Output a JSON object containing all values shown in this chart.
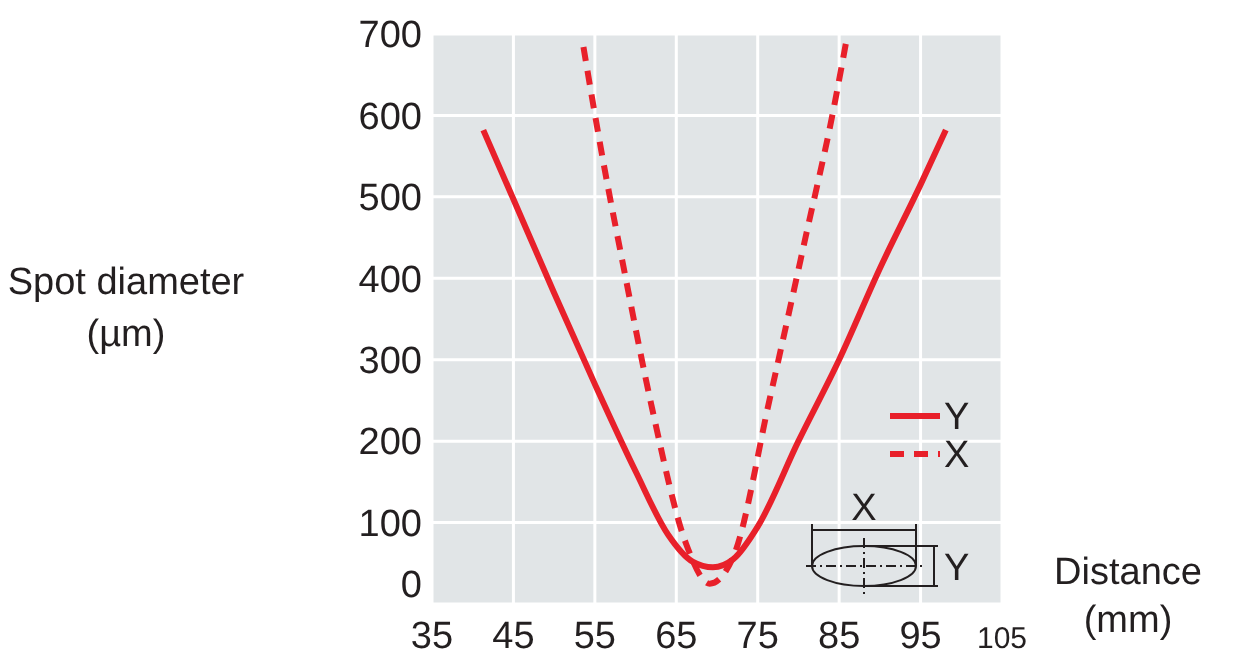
{
  "chart_data": {
    "type": "line",
    "xlabel": "Distance (mm)",
    "ylabel": "Spot diameter (µm)",
    "xlim": [
      35,
      105
    ],
    "xticks": [
      35,
      45,
      55,
      65,
      75,
      85,
      95,
      105
    ],
    "ylim": [
      0,
      700
    ],
    "yticks": [
      0,
      100,
      200,
      300,
      400,
      500,
      600,
      700
    ],
    "annotations": [
      "X",
      "Y"
    ],
    "grid": true,
    "legend": "right",
    "marker": "none",
    "series": [
      {
        "name": "Y",
        "color": "#e8202a",
        "line_style": "solid",
        "x": [
          41.3,
          45,
          50,
          55,
          60,
          64,
          67,
          69.5,
          72,
          75,
          80,
          85,
          90,
          95,
          98.1
        ],
        "values": [
          582,
          497,
          382,
          270,
          163,
          85,
          52,
          45,
          55,
          95,
          200,
          300,
          412,
          515,
          582
        ]
      },
      {
        "name": "X",
        "color": "#e8202a",
        "line_style": "dashed",
        "x": [
          53.6,
          56,
          58.5,
          62.1,
          66.2,
          69.1,
          72,
          76.5,
          81,
          84.2,
          86
        ],
        "values": [
          684,
          545,
          415,
          237,
          74,
          25,
          58,
          253,
          456,
          602,
          698
        ]
      }
    ]
  }
}
